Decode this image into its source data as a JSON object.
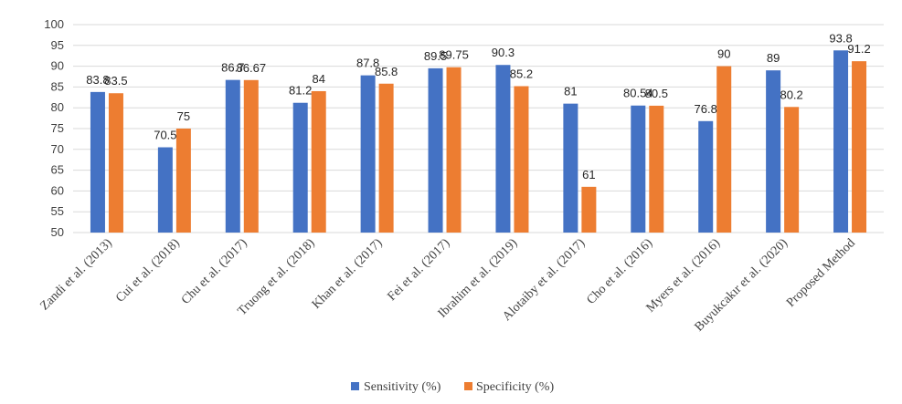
{
  "chart_data": {
    "type": "bar",
    "title": "",
    "xlabel": "",
    "ylabel": "",
    "ylim": [
      50,
      100
    ],
    "ytick_step": 5,
    "grid": true,
    "legend_position": "bottom",
    "categories": [
      "Zandi et al. (2013)",
      "Cui et al. (2018)",
      "Chu et al. (2017)",
      "Truong et al. (2018)",
      "Khan et al. (2017)",
      "Fei et al. (2017)",
      "Ibrahim et al. (2019)",
      "Alotaiby et al. (2017)",
      "Cho et al. (2016)",
      "Myers et al. (2016)",
      "Buyukcakır et al. (2020)",
      "Proposed Method"
    ],
    "series": [
      {
        "name": "Sensitivity (%)",
        "color": "#4472C4",
        "values": [
          83.8,
          70.5,
          86.7,
          81.2,
          87.8,
          89.5,
          90.3,
          81,
          80.54,
          76.8,
          89,
          93.8
        ],
        "labels": [
          "83.8",
          "70.5",
          "86.7",
          "81.2",
          "87.8",
          "89.5",
          "90.3",
          "81",
          "80.54",
          "76.8",
          "89",
          "93.8"
        ]
      },
      {
        "name": "Specificity (%)",
        "color": "#ED7D31",
        "values": [
          83.5,
          75,
          86.67,
          84,
          85.8,
          89.75,
          85.2,
          61,
          80.5,
          90,
          80.2,
          91.2
        ],
        "labels": [
          "83.5",
          "75",
          "86.67",
          "84",
          "85.8",
          "89.75",
          "85.2",
          "61",
          "80.5",
          "90",
          "80.2",
          "91.2"
        ]
      }
    ]
  }
}
